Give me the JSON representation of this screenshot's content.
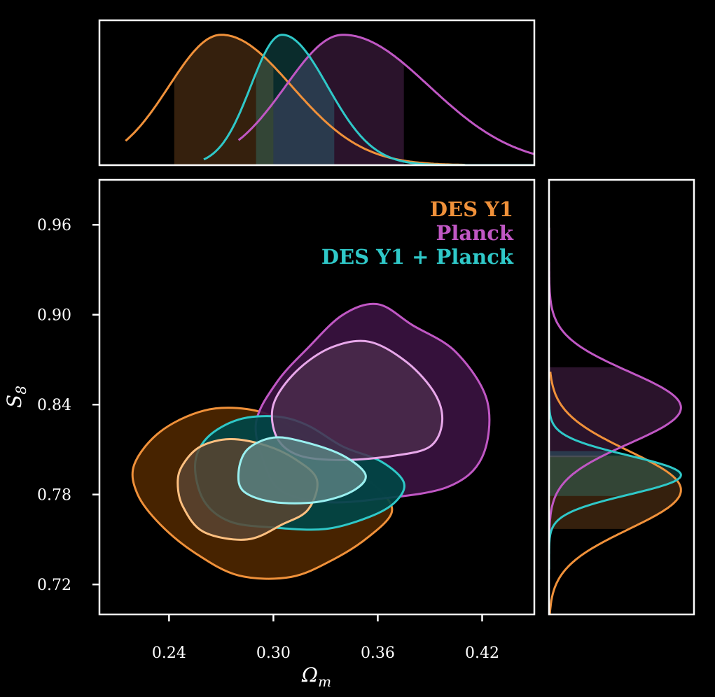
{
  "chart_data": {
    "type": "corner",
    "background": "#000000",
    "xlabel": "Ωm",
    "xlabel_base": "Ω",
    "xlabel_sub": "m",
    "ylabel": "S8",
    "ylabel_base": "S",
    "ylabel_sub": "8",
    "xlim": [
      0.2,
      0.45
    ],
    "ylim": [
      0.7,
      0.99
    ],
    "xticks": [
      0.24,
      0.3,
      0.36,
      0.42
    ],
    "xtick_labels": [
      "0.24",
      "0.30",
      "0.36",
      "0.42"
    ],
    "yticks": [
      0.72,
      0.78,
      0.84,
      0.9,
      0.96
    ],
    "ytick_labels": [
      "0.72",
      "0.78",
      "0.84",
      "0.90",
      "0.96"
    ],
    "legend_position": "top-right",
    "series": [
      {
        "name": "DES Y1",
        "color": "#f0913a",
        "fill_outer": "#4d2600",
        "fill_inner": "#5a4431",
        "line_inner": "#ffc080",
        "omega_m": {
          "mean": 0.27,
          "sigma": 0.03,
          "skew": 0.35,
          "range": [
            0.215,
            0.41
          ],
          "band": [
            0.243,
            0.3
          ]
        },
        "s8": {
          "mean": 0.783,
          "sigma": 0.026,
          "range": [
            0.7,
            0.862
          ],
          "band": [
            0.757,
            0.806
          ]
        },
        "contour_95": [
          [
            0.22,
            0.8
          ],
          [
            0.235,
            0.822
          ],
          [
            0.26,
            0.836
          ],
          [
            0.285,
            0.837
          ],
          [
            0.305,
            0.829
          ],
          [
            0.325,
            0.812
          ],
          [
            0.345,
            0.797
          ],
          [
            0.362,
            0.782
          ],
          [
            0.368,
            0.768
          ],
          [
            0.355,
            0.752
          ],
          [
            0.335,
            0.737
          ],
          [
            0.31,
            0.725
          ],
          [
            0.28,
            0.726
          ],
          [
            0.255,
            0.741
          ],
          [
            0.235,
            0.76
          ],
          [
            0.222,
            0.78
          ]
        ],
        "contour_68": [
          [
            0.248,
            0.8
          ],
          [
            0.258,
            0.812
          ],
          [
            0.275,
            0.817
          ],
          [
            0.295,
            0.813
          ],
          [
            0.312,
            0.804
          ],
          [
            0.325,
            0.79
          ],
          [
            0.32,
            0.77
          ],
          [
            0.305,
            0.76
          ],
          [
            0.285,
            0.75
          ],
          [
            0.26,
            0.755
          ],
          [
            0.248,
            0.772
          ],
          [
            0.245,
            0.788
          ]
        ]
      },
      {
        "name": "Planck",
        "color": "#c057c4",
        "fill_outer": "#3a1240",
        "fill_inner": "#4a2c4c",
        "line_inner": "#e8a8ea",
        "omega_m": {
          "mean": 0.34,
          "sigma": 0.033,
          "skew": 0.5,
          "range": [
            0.28,
            0.45
          ],
          "band": [
            0.3,
            0.375
          ]
        },
        "s8": {
          "mean": 0.838,
          "sigma": 0.024,
          "range": [
            0.755,
            0.958
          ],
          "band": [
            0.805,
            0.865
          ]
        },
        "contour_95": [
          [
            0.29,
            0.828
          ],
          [
            0.302,
            0.855
          ],
          [
            0.32,
            0.878
          ],
          [
            0.34,
            0.9
          ],
          [
            0.36,
            0.907
          ],
          [
            0.38,
            0.893
          ],
          [
            0.405,
            0.875
          ],
          [
            0.423,
            0.842
          ],
          [
            0.42,
            0.805
          ],
          [
            0.4,
            0.785
          ],
          [
            0.36,
            0.777
          ],
          [
            0.33,
            0.775
          ],
          [
            0.305,
            0.782
          ],
          [
            0.295,
            0.8
          ]
        ],
        "contour_68": [
          [
            0.3,
            0.84
          ],
          [
            0.313,
            0.862
          ],
          [
            0.333,
            0.878
          ],
          [
            0.355,
            0.882
          ],
          [
            0.377,
            0.868
          ],
          [
            0.393,
            0.847
          ],
          [
            0.397,
            0.828
          ],
          [
            0.39,
            0.812
          ],
          [
            0.37,
            0.806
          ],
          [
            0.34,
            0.803
          ],
          [
            0.315,
            0.806
          ],
          [
            0.302,
            0.818
          ]
        ]
      },
      {
        "name": "DES Y1 + Planck",
        "color": "#2fc8c8",
        "fill_outer": "#004545",
        "fill_inner": "#587f7f",
        "line_inner": "#9af0f0",
        "omega_m": {
          "mean": 0.305,
          "sigma": 0.018,
          "skew": 0.45,
          "range": [
            0.26,
            0.45
          ],
          "band": [
            0.29,
            0.335
          ]
        },
        "s8": {
          "mean": 0.793,
          "sigma": 0.013,
          "range": [
            0.73,
            0.855
          ],
          "band": [
            0.779,
            0.809
          ]
        },
        "contour_95": [
          [
            0.255,
            0.8
          ],
          [
            0.262,
            0.818
          ],
          [
            0.28,
            0.83
          ],
          [
            0.302,
            0.832
          ],
          [
            0.32,
            0.826
          ],
          [
            0.34,
            0.812
          ],
          [
            0.362,
            0.802
          ],
          [
            0.375,
            0.788
          ],
          [
            0.37,
            0.775
          ],
          [
            0.355,
            0.765
          ],
          [
            0.33,
            0.757
          ],
          [
            0.3,
            0.758
          ],
          [
            0.275,
            0.762
          ],
          [
            0.26,
            0.776
          ]
        ],
        "contour_68": [
          [
            0.28,
            0.795
          ],
          [
            0.285,
            0.81
          ],
          [
            0.3,
            0.818
          ],
          [
            0.318,
            0.815
          ],
          [
            0.34,
            0.806
          ],
          [
            0.353,
            0.793
          ],
          [
            0.345,
            0.782
          ],
          [
            0.325,
            0.775
          ],
          [
            0.3,
            0.775
          ],
          [
            0.283,
            0.782
          ]
        ]
      }
    ]
  }
}
